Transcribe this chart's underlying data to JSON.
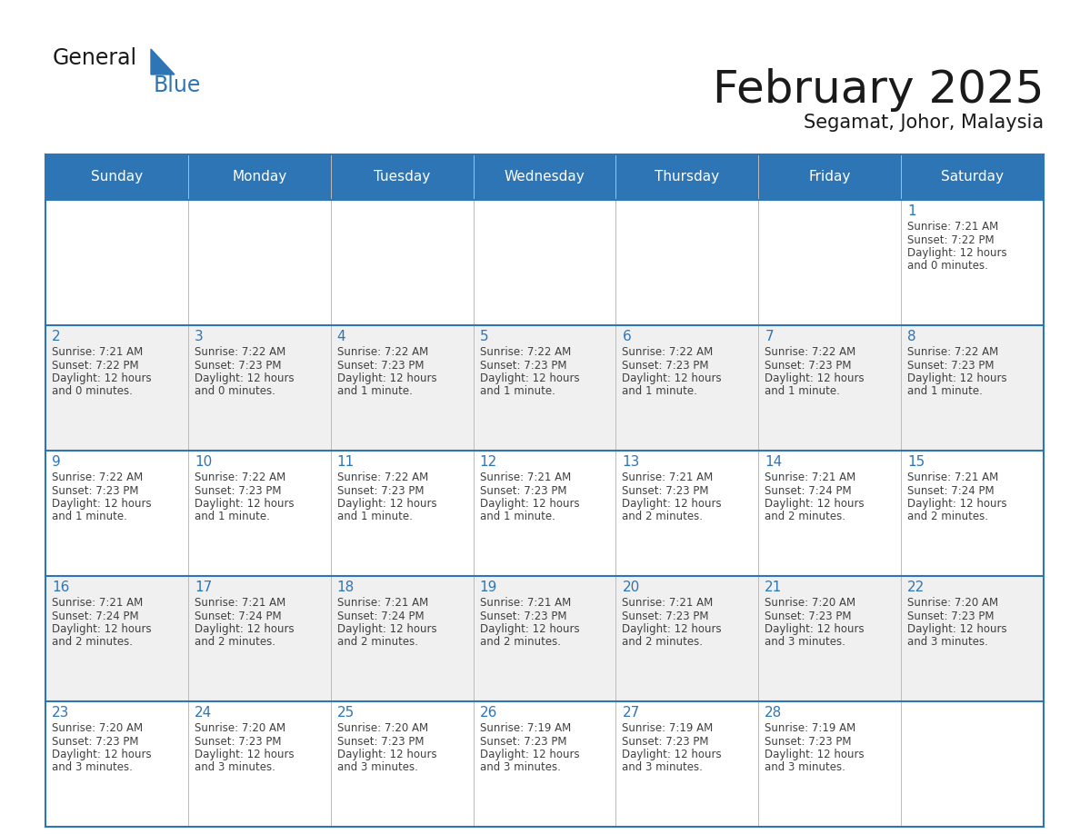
{
  "title": "February 2025",
  "subtitle": "Segamat, Johor, Malaysia",
  "header_bg_color": "#2E75B6",
  "header_text_color": "#FFFFFF",
  "cell_bg_color": "#FFFFFF",
  "cell_alt_bg_color": "#F0F0F0",
  "grid_line_color": "#2E75B6",
  "day_headers": [
    "Sunday",
    "Monday",
    "Tuesday",
    "Wednesday",
    "Thursday",
    "Friday",
    "Saturday"
  ],
  "title_color": "#1a1a1a",
  "subtitle_color": "#1a1a1a",
  "day_num_color": "#2E75B6",
  "cell_text_color": "#404040",
  "calendar": [
    [
      null,
      null,
      null,
      null,
      null,
      null,
      1
    ],
    [
      2,
      3,
      4,
      5,
      6,
      7,
      8
    ],
    [
      9,
      10,
      11,
      12,
      13,
      14,
      15
    ],
    [
      16,
      17,
      18,
      19,
      20,
      21,
      22
    ],
    [
      23,
      24,
      25,
      26,
      27,
      28,
      null
    ]
  ],
  "cell_data": {
    "1": {
      "sunrise": "7:21 AM",
      "sunset": "7:22 PM",
      "daylight1": "12 hours",
      "daylight2": "and 0 minutes."
    },
    "2": {
      "sunrise": "7:21 AM",
      "sunset": "7:22 PM",
      "daylight1": "12 hours",
      "daylight2": "and 0 minutes."
    },
    "3": {
      "sunrise": "7:22 AM",
      "sunset": "7:23 PM",
      "daylight1": "12 hours",
      "daylight2": "and 0 minutes."
    },
    "4": {
      "sunrise": "7:22 AM",
      "sunset": "7:23 PM",
      "daylight1": "12 hours",
      "daylight2": "and 1 minute."
    },
    "5": {
      "sunrise": "7:22 AM",
      "sunset": "7:23 PM",
      "daylight1": "12 hours",
      "daylight2": "and 1 minute."
    },
    "6": {
      "sunrise": "7:22 AM",
      "sunset": "7:23 PM",
      "daylight1": "12 hours",
      "daylight2": "and 1 minute."
    },
    "7": {
      "sunrise": "7:22 AM",
      "sunset": "7:23 PM",
      "daylight1": "12 hours",
      "daylight2": "and 1 minute."
    },
    "8": {
      "sunrise": "7:22 AM",
      "sunset": "7:23 PM",
      "daylight1": "12 hours",
      "daylight2": "and 1 minute."
    },
    "9": {
      "sunrise": "7:22 AM",
      "sunset": "7:23 PM",
      "daylight1": "12 hours",
      "daylight2": "and 1 minute."
    },
    "10": {
      "sunrise": "7:22 AM",
      "sunset": "7:23 PM",
      "daylight1": "12 hours",
      "daylight2": "and 1 minute."
    },
    "11": {
      "sunrise": "7:22 AM",
      "sunset": "7:23 PM",
      "daylight1": "12 hours",
      "daylight2": "and 1 minute."
    },
    "12": {
      "sunrise": "7:21 AM",
      "sunset": "7:23 PM",
      "daylight1": "12 hours",
      "daylight2": "and 1 minute."
    },
    "13": {
      "sunrise": "7:21 AM",
      "sunset": "7:23 PM",
      "daylight1": "12 hours",
      "daylight2": "and 2 minutes."
    },
    "14": {
      "sunrise": "7:21 AM",
      "sunset": "7:24 PM",
      "daylight1": "12 hours",
      "daylight2": "and 2 minutes."
    },
    "15": {
      "sunrise": "7:21 AM",
      "sunset": "7:24 PM",
      "daylight1": "12 hours",
      "daylight2": "and 2 minutes."
    },
    "16": {
      "sunrise": "7:21 AM",
      "sunset": "7:24 PM",
      "daylight1": "12 hours",
      "daylight2": "and 2 minutes."
    },
    "17": {
      "sunrise": "7:21 AM",
      "sunset": "7:24 PM",
      "daylight1": "12 hours",
      "daylight2": "and 2 minutes."
    },
    "18": {
      "sunrise": "7:21 AM",
      "sunset": "7:24 PM",
      "daylight1": "12 hours",
      "daylight2": "and 2 minutes."
    },
    "19": {
      "sunrise": "7:21 AM",
      "sunset": "7:23 PM",
      "daylight1": "12 hours",
      "daylight2": "and 2 minutes."
    },
    "20": {
      "sunrise": "7:21 AM",
      "sunset": "7:23 PM",
      "daylight1": "12 hours",
      "daylight2": "and 2 minutes."
    },
    "21": {
      "sunrise": "7:20 AM",
      "sunset": "7:23 PM",
      "daylight1": "12 hours",
      "daylight2": "and 3 minutes."
    },
    "22": {
      "sunrise": "7:20 AM",
      "sunset": "7:23 PM",
      "daylight1": "12 hours",
      "daylight2": "and 3 minutes."
    },
    "23": {
      "sunrise": "7:20 AM",
      "sunset": "7:23 PM",
      "daylight1": "12 hours",
      "daylight2": "and 3 minutes."
    },
    "24": {
      "sunrise": "7:20 AM",
      "sunset": "7:23 PM",
      "daylight1": "12 hours",
      "daylight2": "and 3 minutes."
    },
    "25": {
      "sunrise": "7:20 AM",
      "sunset": "7:23 PM",
      "daylight1": "12 hours",
      "daylight2": "and 3 minutes."
    },
    "26": {
      "sunrise": "7:19 AM",
      "sunset": "7:23 PM",
      "daylight1": "12 hours",
      "daylight2": "and 3 minutes."
    },
    "27": {
      "sunrise": "7:19 AM",
      "sunset": "7:23 PM",
      "daylight1": "12 hours",
      "daylight2": "and 3 minutes."
    },
    "28": {
      "sunrise": "7:19 AM",
      "sunset": "7:23 PM",
      "daylight1": "12 hours",
      "daylight2": "and 3 minutes."
    }
  }
}
